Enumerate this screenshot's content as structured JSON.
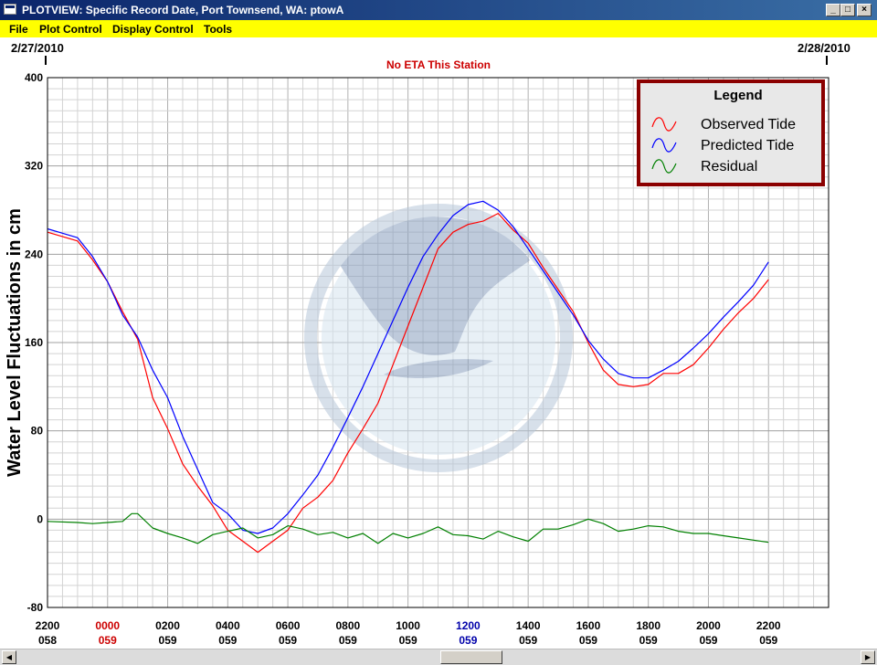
{
  "window": {
    "title": "PLOTVIEW: Specific Record Date, Port Townsend, WA: ptowA",
    "minimize": "_",
    "maximize": "□",
    "close": "×"
  },
  "menu": [
    "File",
    "Plot Control",
    "Display Control",
    "Tools"
  ],
  "chart_data": {
    "type": "line",
    "date_left": "2/27/2010",
    "date_right": "2/28/2010",
    "notice": "No ETA This Station",
    "ylabel": "Water Level Fluctuations in cm",
    "ylim": [
      -80,
      400
    ],
    "ytick_values": [
      -80,
      0,
      80,
      160,
      240,
      320,
      400
    ],
    "xlim_hours": [
      -2,
      24
    ],
    "grid": true,
    "legend_title": "Legend",
    "legend_position": "top-right",
    "x_ticks": [
      {
        "hour": -2,
        "time": "2200",
        "day": "058",
        "color": "#000000"
      },
      {
        "hour": 0,
        "time": "0000",
        "day": "059",
        "color": "#cc0000"
      },
      {
        "hour": 2,
        "time": "0200",
        "day": "059",
        "color": "#000000"
      },
      {
        "hour": 4,
        "time": "0400",
        "day": "059",
        "color": "#000000"
      },
      {
        "hour": 6,
        "time": "0600",
        "day": "059",
        "color": "#000000"
      },
      {
        "hour": 8,
        "time": "0800",
        "day": "059",
        "color": "#000000"
      },
      {
        "hour": 10,
        "time": "1000",
        "day": "059",
        "color": "#000000"
      },
      {
        "hour": 12,
        "time": "1200",
        "day": "059",
        "color": "#0000aa"
      },
      {
        "hour": 14,
        "time": "1400",
        "day": "059",
        "color": "#000000"
      },
      {
        "hour": 16,
        "time": "1600",
        "day": "059",
        "color": "#000000"
      },
      {
        "hour": 18,
        "time": "1800",
        "day": "059",
        "color": "#000000"
      },
      {
        "hour": 20,
        "time": "2000",
        "day": "059",
        "color": "#000000"
      },
      {
        "hour": 22,
        "time": "2200",
        "day": "059",
        "color": "#000000"
      }
    ],
    "series": [
      {
        "name": "Observed Tide",
        "color": "#ff0000",
        "points": [
          [
            -2,
            260
          ],
          [
            -1,
            252
          ],
          [
            -0.5,
            235
          ],
          [
            0,
            215
          ],
          [
            0.5,
            188
          ],
          [
            1,
            163
          ],
          [
            1.5,
            110
          ],
          [
            2,
            82
          ],
          [
            2.5,
            50
          ],
          [
            3,
            30
          ],
          [
            3.5,
            12
          ],
          [
            4,
            -10
          ],
          [
            4.5,
            -20
          ],
          [
            5,
            -30
          ],
          [
            5.5,
            -20
          ],
          [
            6,
            -10
          ],
          [
            6.5,
            10
          ],
          [
            7,
            20
          ],
          [
            7.5,
            35
          ],
          [
            8,
            60
          ],
          [
            8.5,
            82
          ],
          [
            9,
            105
          ],
          [
            9.5,
            140
          ],
          [
            10,
            175
          ],
          [
            10.5,
            210
          ],
          [
            11,
            245
          ],
          [
            11.5,
            260
          ],
          [
            12,
            267
          ],
          [
            12.5,
            270
          ],
          [
            13,
            277
          ],
          [
            13.5,
            262
          ],
          [
            14,
            250
          ],
          [
            14.5,
            228
          ],
          [
            15,
            208
          ],
          [
            15.5,
            188
          ],
          [
            16,
            160
          ],
          [
            16.5,
            135
          ],
          [
            17,
            122
          ],
          [
            17.5,
            120
          ],
          [
            18,
            122
          ],
          [
            18.5,
            132
          ],
          [
            19,
            132
          ],
          [
            19.5,
            140
          ],
          [
            20,
            155
          ],
          [
            20.5,
            172
          ],
          [
            21,
            187
          ],
          [
            21.5,
            200
          ],
          [
            22,
            217
          ]
        ]
      },
      {
        "name": "Predicted Tide",
        "color": "#0000ff",
        "points": [
          [
            -2,
            263
          ],
          [
            -1,
            255
          ],
          [
            -0.5,
            238
          ],
          [
            0,
            215
          ],
          [
            0.5,
            185
          ],
          [
            1,
            165
          ],
          [
            1.5,
            135
          ],
          [
            2,
            110
          ],
          [
            2.5,
            75
          ],
          [
            3,
            45
          ],
          [
            3.5,
            15
          ],
          [
            4,
            5
          ],
          [
            4.5,
            -10
          ],
          [
            5,
            -13
          ],
          [
            5.5,
            -8
          ],
          [
            6,
            5
          ],
          [
            6.5,
            22
          ],
          [
            7,
            40
          ],
          [
            7.5,
            65
          ],
          [
            8,
            92
          ],
          [
            8.5,
            120
          ],
          [
            9,
            150
          ],
          [
            9.5,
            180
          ],
          [
            10,
            210
          ],
          [
            10.5,
            238
          ],
          [
            11,
            258
          ],
          [
            11.5,
            275
          ],
          [
            12,
            285
          ],
          [
            12.5,
            288
          ],
          [
            13,
            280
          ],
          [
            13.5,
            265
          ],
          [
            14,
            245
          ],
          [
            14.5,
            225
          ],
          [
            15,
            205
          ],
          [
            15.5,
            185
          ],
          [
            16,
            162
          ],
          [
            16.5,
            145
          ],
          [
            17,
            132
          ],
          [
            17.5,
            128
          ],
          [
            18,
            128
          ],
          [
            18.5,
            135
          ],
          [
            19,
            143
          ],
          [
            19.5,
            155
          ],
          [
            20,
            168
          ],
          [
            20.5,
            183
          ],
          [
            21,
            197
          ],
          [
            21.5,
            212
          ],
          [
            22,
            233
          ]
        ]
      },
      {
        "name": "Residual",
        "color": "#008000",
        "points": [
          [
            -2,
            -2
          ],
          [
            -1,
            -3
          ],
          [
            -0.5,
            -4
          ],
          [
            0,
            -3
          ],
          [
            0.5,
            -2
          ],
          [
            0.8,
            5
          ],
          [
            1,
            5
          ],
          [
            1.5,
            -8
          ],
          [
            2,
            -13
          ],
          [
            2.5,
            -17
          ],
          [
            3,
            -22
          ],
          [
            3.5,
            -14
          ],
          [
            4,
            -11
          ],
          [
            4.5,
            -8
          ],
          [
            5,
            -17
          ],
          [
            5.5,
            -14
          ],
          [
            6,
            -6
          ],
          [
            6.5,
            -9
          ],
          [
            7,
            -14
          ],
          [
            7.5,
            -12
          ],
          [
            8,
            -17
          ],
          [
            8.5,
            -13
          ],
          [
            9,
            -22
          ],
          [
            9.5,
            -13
          ],
          [
            10,
            -17
          ],
          [
            10.5,
            -13
          ],
          [
            11,
            -7
          ],
          [
            11.5,
            -14
          ],
          [
            12,
            -15
          ],
          [
            12.5,
            -18
          ],
          [
            13,
            -11
          ],
          [
            13.5,
            -16
          ],
          [
            14,
            -20
          ],
          [
            14.5,
            -9
          ],
          [
            15,
            -9
          ],
          [
            15.5,
            -5
          ],
          [
            16,
            0
          ],
          [
            16.5,
            -4
          ],
          [
            17,
            -11
          ],
          [
            17.5,
            -9
          ],
          [
            18,
            -6
          ],
          [
            18.5,
            -7
          ],
          [
            19,
            -11
          ],
          [
            19.5,
            -13
          ],
          [
            20,
            -13
          ],
          [
            20.5,
            -15
          ],
          [
            21,
            -17
          ],
          [
            21.5,
            -19
          ],
          [
            22,
            -21
          ]
        ]
      }
    ]
  },
  "scrollbar": {
    "left_arrow": "◀",
    "right_arrow": "▶"
  }
}
